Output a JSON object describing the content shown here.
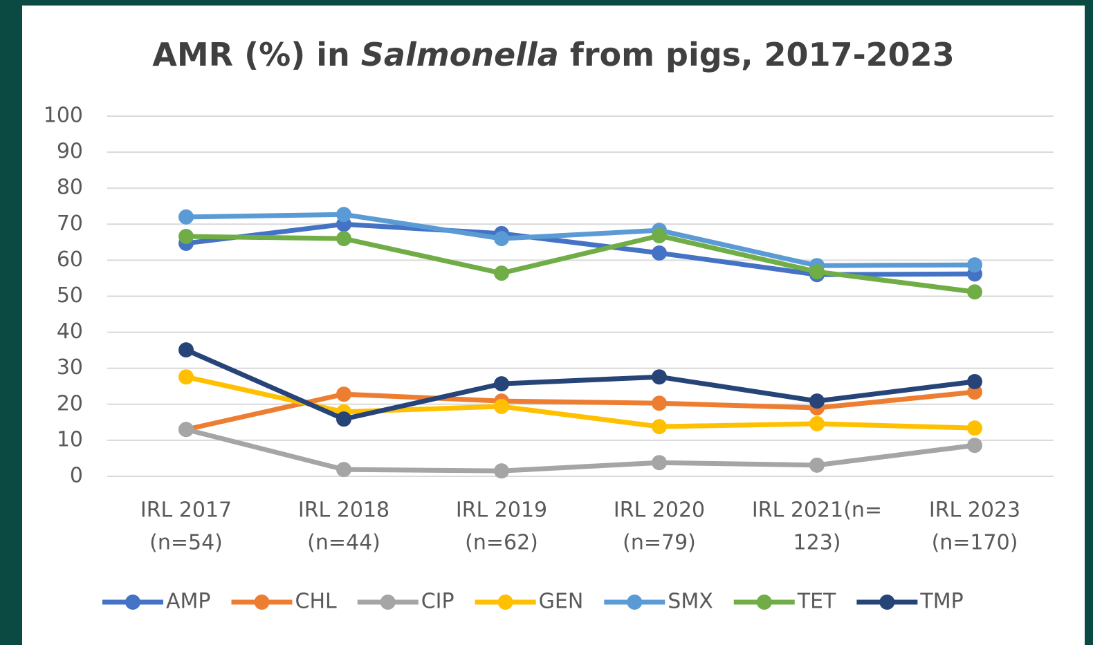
{
  "chart_data": {
    "type": "line",
    "title": [
      "AMR (%) in",
      "Salmonella",
      "from pigs, 2017-2023"
    ],
    "categories": [
      [
        "IRL 2017",
        "(n=54)"
      ],
      [
        "IRL 2018",
        "(n=44)"
      ],
      [
        "IRL 2019",
        "(n=62)"
      ],
      [
        "IRL 2020",
        "(n=79)"
      ],
      [
        "IRL 2021(n=",
        "123)"
      ],
      [
        "IRL 2023",
        "(n=170)"
      ]
    ],
    "series": [
      {
        "name": "AMP",
        "color": "#4472c4",
        "values": [
          64.7,
          70,
          67.4,
          62,
          56,
          56.2
        ]
      },
      {
        "name": "CHL",
        "color": "#ed7d31",
        "values": [
          13,
          22.8,
          20.9,
          20.3,
          19,
          23.4
        ]
      },
      {
        "name": "CIP",
        "color": "#a5a5a5",
        "values": [
          13,
          1.9,
          1.5,
          3.8,
          3.1,
          8.6
        ]
      },
      {
        "name": "GEN",
        "color": "#ffc000",
        "values": [
          27.6,
          17.9,
          19.4,
          13.8,
          14.6,
          13.4
        ]
      },
      {
        "name": "SMX",
        "color": "#5b9bd5",
        "values": [
          72,
          72.7,
          66,
          68.3,
          58.5,
          58.7
        ]
      },
      {
        "name": "TET",
        "color": "#70ad47",
        "values": [
          66.6,
          66,
          56.4,
          66.8,
          56.8,
          51.2
        ]
      },
      {
        "name": "TMP",
        "color": "#264478",
        "values": [
          35.1,
          15.9,
          25.7,
          27.6,
          20.9,
          26.3
        ]
      }
    ],
    "ylim": [
      0,
      100
    ],
    "yticks": [
      0,
      10,
      20,
      30,
      40,
      50,
      60,
      70,
      80,
      90,
      100
    ],
    "grid": true,
    "legend": "bottom"
  }
}
